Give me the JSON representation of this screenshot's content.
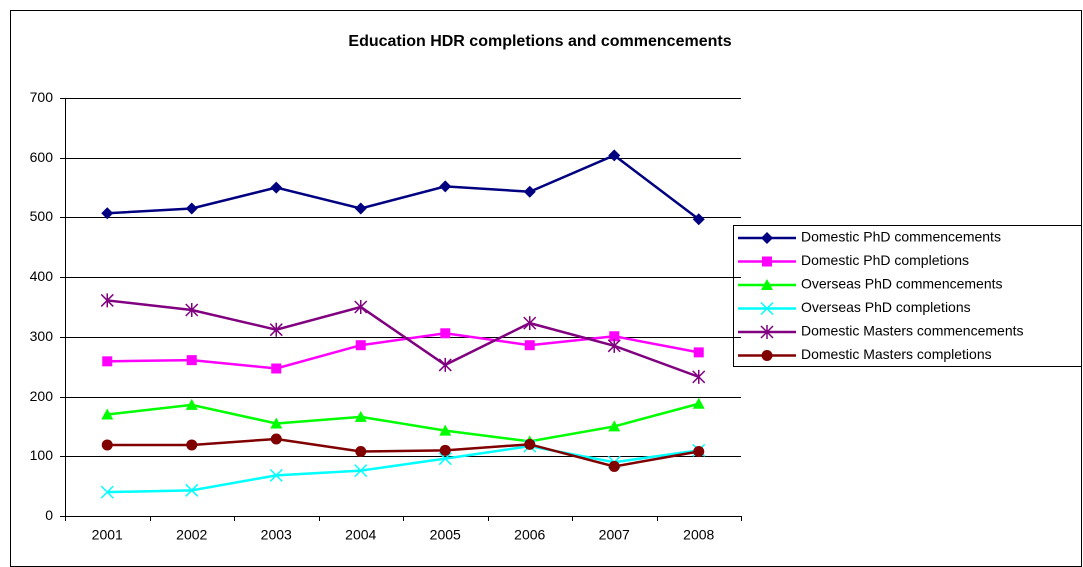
{
  "chart_data": {
    "type": "line",
    "title": "Education HDR completions and commencements",
    "categories": [
      "2001",
      "2002",
      "2003",
      "2004",
      "2005",
      "2006",
      "2007",
      "2008"
    ],
    "ylim": [
      0,
      700
    ],
    "yticks": [
      0,
      100,
      200,
      300,
      400,
      500,
      600,
      700
    ],
    "grid": true,
    "legend": "right",
    "series": [
      {
        "name": "Domestic PhD commencements",
        "color": "#000080",
        "marker": "diamond",
        "values": [
          507,
          515,
          550,
          515,
          552,
          543,
          604,
          497
        ]
      },
      {
        "name": "Domestic PhD completions",
        "color": "#ff00ff",
        "marker": "square",
        "values": [
          259,
          261,
          247,
          286,
          306,
          286,
          301,
          274
        ]
      },
      {
        "name": "Overseas PhD commencements",
        "color": "#00ff00",
        "marker": "triangle",
        "values": [
          170,
          186,
          155,
          166,
          143,
          125,
          150,
          188
        ]
      },
      {
        "name": "Overseas PhD completions",
        "color": "#00ffff",
        "marker": "x",
        "values": [
          40,
          43,
          68,
          76,
          96,
          117,
          90,
          110
        ]
      },
      {
        "name": "Domestic Masters commencements",
        "color": "#800080",
        "marker": "star",
        "values": [
          361,
          345,
          312,
          350,
          253,
          323,
          285,
          233
        ]
      },
      {
        "name": "Domestic Masters completions",
        "color": "#800000",
        "marker": "circle",
        "values": [
          119,
          119,
          129,
          108,
          110,
          120,
          83,
          108
        ]
      }
    ]
  }
}
